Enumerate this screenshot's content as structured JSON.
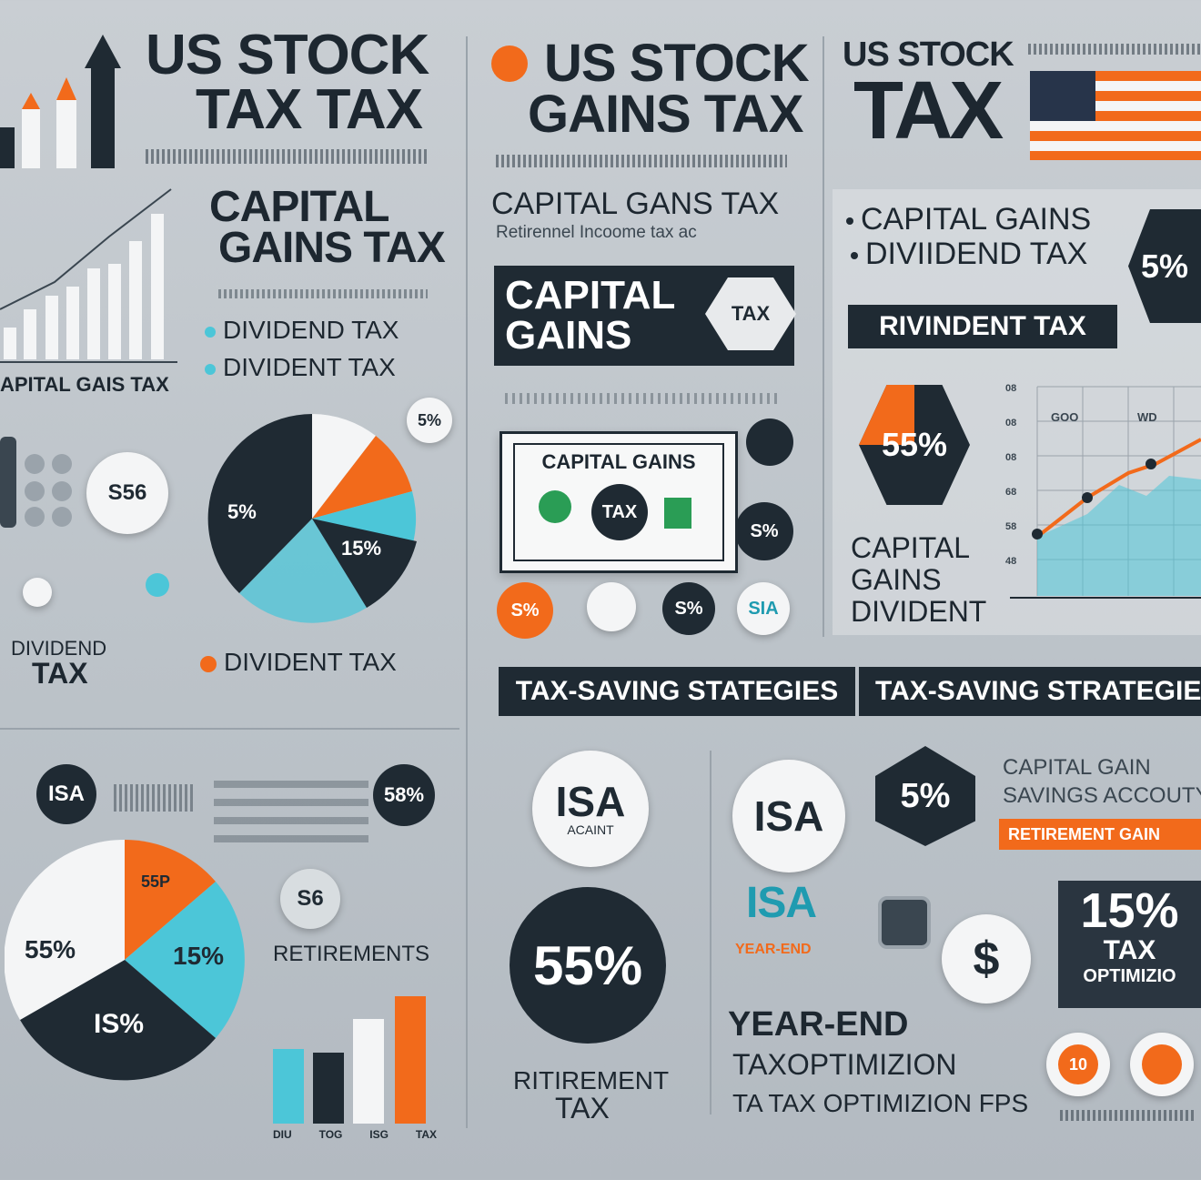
{
  "col1": {
    "title_line1": "US STOCK",
    "title_line2": "TAX TAX",
    "cap_heading_line1": "CAPITAL",
    "cap_heading_line2": "GAINS TAX",
    "dividend_item1": "DIVIDEND TAX",
    "dividend_item2": "DIVIDENT TAX",
    "chart_caption": "APITAL GAIS TAX",
    "badge_ss": "S56",
    "pie_labels": {
      "a": "5%",
      "b": "15%",
      "c": "5%"
    },
    "dividend_block_line1": "DIVIDEND",
    "dividend_block_line2": "TAX",
    "divident_tax": "DIVIDENT TAX",
    "isa_badge": "ISA",
    "badge_58": "58%",
    "pie2_labels": {
      "a": "55%",
      "b": "15%",
      "c": "IS%",
      "d": "55P"
    },
    "badge_s6": "S6",
    "retirements": "RETIREMENTS",
    "bar_labels": [
      "DIU",
      "TOG",
      "ISG",
      "TAX"
    ]
  },
  "col2": {
    "title_line1": "US STOCK",
    "title_line2": "GAINS TAX",
    "cap_gains_tax": "CAPITAL GANS TAX",
    "subline": "Retirennel Incoome tax ac",
    "banner_line1": "CAPITAL",
    "banner_line2": "GAINS",
    "banner_badge": "TAX",
    "bill_title": "CAPITAL GAINS",
    "bill_center": "TAX",
    "badges": [
      "S%",
      "S%",
      "SIA",
      "S%"
    ],
    "isa_title": "ISA",
    "isa_sub": "ACAINT",
    "big_pct": "55%",
    "retirement_line1": "RITIREMENT",
    "retirement_line2": "TAX"
  },
  "col3": {
    "title_line1": "US STOCK",
    "title_line2": "TAX",
    "bullet1": "CAPITAL GAINS",
    "bullet2": "DIVIIDEND TAX",
    "pct_badge": "5%",
    "banner": "RIVINDENT TAX",
    "hex_pct": "55%",
    "stack_line1": "CAPITAL",
    "stack_line2": "GAINS",
    "stack_line3": "DIVIDENT",
    "chart_y_ticks": [
      "08",
      "08",
      "08",
      "68",
      "58",
      "48"
    ],
    "chart_ann1": "GOO",
    "chart_ann2": "WD"
  },
  "strategies": {
    "banner_left": "TAX-SAVING STATEGIES",
    "banner_right": "TAX-SAVING STRATEGIE",
    "isa_circle": "ISA",
    "pct_hex": "5%",
    "heading_line1": "CAPITAL GAIN",
    "heading_line2": "SAVINGS ACCOUTY",
    "orange_strip": "RETIREMENT GAIN",
    "isa_word": "ISA",
    "isa_sub": "YEAR-END",
    "dollar": "$",
    "box_pct": "15%",
    "box_line2": "TAX",
    "box_line3": "OPTIMIZIO",
    "year_end": "YEAR-END",
    "tax_optim": "TAXOPTIMIZION",
    "tips": "TA TAX OPTIMIZION FPS",
    "coin1": "10"
  },
  "colors": {
    "dark": "#1f2a33",
    "orange": "#f26a1b",
    "cyan": "#4cc6d8",
    "white": "#f4f5f6"
  }
}
